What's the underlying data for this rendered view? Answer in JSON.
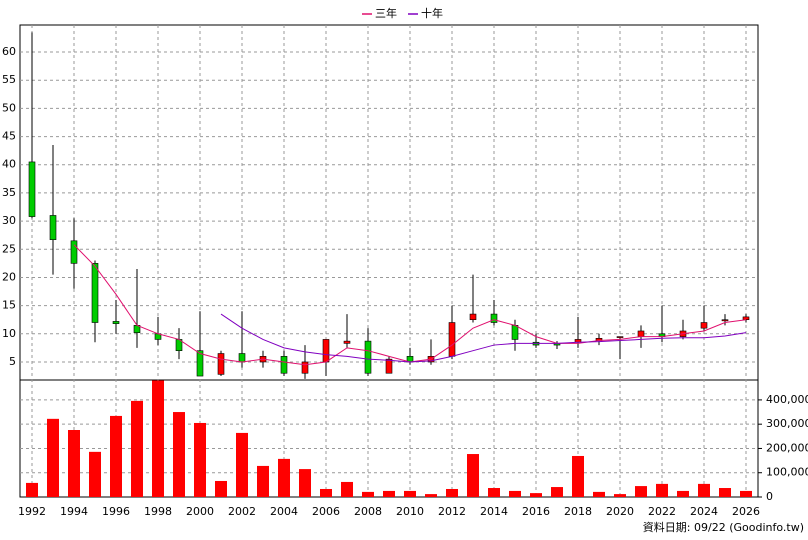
{
  "chart_data": {
    "type": "candlestick",
    "categories": [
      "1992",
      null,
      "1994",
      null,
      "1996",
      null,
      "1998",
      null,
      "2000",
      null,
      "2002",
      null,
      "2004",
      null,
      "2006",
      null,
      "2008",
      null,
      "2010",
      null,
      "2012",
      null,
      "2014",
      null,
      "2016",
      null,
      "2018",
      null,
      "2020",
      null,
      "2022",
      null,
      "2024",
      null,
      "2026"
    ],
    "open": [
      40.5,
      31,
      26.5,
      22.5,
      12.2,
      11.5,
      10,
      9,
      7,
      2.8,
      6.5,
      5,
      6,
      3,
      5,
      8.3,
      8.7,
      3,
      6,
      5,
      6,
      12.5,
      13.5,
      11.5,
      8.5,
      8.3,
      8.5,
      8.8,
      9.4,
      9.5,
      10,
      9.5,
      11,
      12.3,
      12.5
    ],
    "high": [
      63.5,
      43.5,
      30.5,
      23,
      16,
      21.5,
      13,
      11,
      14,
      7,
      14,
      7,
      7,
      8,
      9,
      13.5,
      11,
      6,
      7.5,
      9,
      15,
      20.5,
      16,
      12.5,
      10,
      8.7,
      13,
      10,
      9.5,
      11.5,
      15,
      12.5,
      15,
      13.5,
      13.5
    ],
    "low": [
      30.5,
      20.5,
      18,
      8.5,
      10,
      7.5,
      8,
      5.5,
      2.5,
      2.5,
      4,
      4,
      2.5,
      2,
      2.5,
      7.5,
      2.5,
      3,
      4.5,
      4.5,
      5.5,
      12,
      11.5,
      7,
      7.5,
      7.3,
      7.5,
      8,
      5.5,
      7.5,
      8.5,
      9,
      10.5,
      11.5,
      12
    ],
    "close": [
      30.8,
      26.7,
      22.5,
      12,
      11.8,
      10.2,
      9,
      7,
      2.5,
      6.5,
      5,
      6,
      3,
      5,
      9,
      8.7,
      3,
      5.5,
      5,
      6,
      12,
      13.5,
      12,
      9,
      8,
      8,
      9,
      9.2,
      9.5,
      10.5,
      9.5,
      10.5,
      12,
      12.5,
      13
    ],
    "up_color": "#ff0000",
    "down_color": "#00cc00",
    "series": [
      {
        "name": "三年",
        "color": "#e0106e",
        "values": [
          null,
          null,
          25.8,
          22,
          17,
          11.5,
          10,
          9,
          6.5,
          5.5,
          5,
          5.5,
          5,
          4.5,
          5,
          7.5,
          7,
          6,
          5,
          5.5,
          8,
          11,
          12.5,
          11.5,
          9.5,
          8.3,
          8.3,
          8.8,
          9,
          9.5,
          9.5,
          10,
          10.5,
          12,
          12.5
        ]
      },
      {
        "name": "十年",
        "color": "#8000c0",
        "values": [
          null,
          null,
          null,
          null,
          null,
          null,
          null,
          null,
          null,
          13.5,
          11,
          9,
          7.5,
          6.8,
          6.3,
          6,
          5.5,
          5.3,
          5,
          5.2,
          6,
          7,
          8,
          8.3,
          8.3,
          8.3,
          8.5,
          8.6,
          8.8,
          9,
          9.2,
          9.3,
          9.3,
          9.6,
          10.2
        ]
      }
    ],
    "ylim": [
      1.8,
      64.8
    ],
    "yticks": [
      5,
      10,
      15,
      20,
      25,
      30,
      35,
      40,
      45,
      50,
      55,
      60
    ],
    "grid": true,
    "volume": {
      "color": "#ff0000",
      "values": [
        58000,
        322000,
        276000,
        186000,
        334000,
        396000,
        480000,
        350000,
        305000,
        66000,
        264000,
        128000,
        157000,
        115000,
        33000,
        62000,
        21000,
        25000,
        25000,
        12000,
        33000,
        177000,
        37000,
        25000,
        16000,
        41000,
        169000,
        21000,
        12000,
        45000,
        54000,
        25000,
        54000,
        37000,
        25000
      ],
      "ylim": [
        0,
        482000
      ],
      "yticks": [
        0,
        {
          "value": 100000,
          "label": "100,000"
        },
        {
          "value": 200000,
          "label": "200,000"
        },
        {
          "value": 300000,
          "label": "300,000"
        },
        {
          "value": 400000,
          "label": "400,000"
        }
      ]
    },
    "note": "資料日期: 09/22 (Goodinfo.tw)"
  }
}
